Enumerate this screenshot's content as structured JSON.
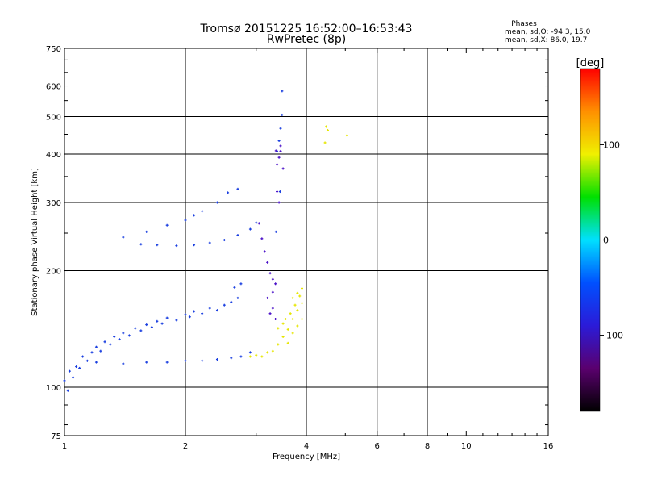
{
  "chart_data": {
    "type": "scatter",
    "title": "Tromsø 20151225 16:52:00–16:53:43",
    "subtitle": "RwPretec (8p)",
    "xlabel": "Frequency [MHz]",
    "ylabel": "Stationary phase Virtual Height [km]",
    "x_scale": "log",
    "y_scale": "log",
    "xlim": [
      1,
      16
    ],
    "ylim": [
      75,
      750
    ],
    "x_ticks": [
      1,
      2,
      4,
      6,
      8,
      10,
      16
    ],
    "y_ticks": [
      75,
      100,
      200,
      300,
      400,
      500,
      600,
      750
    ],
    "x_gridlines": [
      2,
      4,
      6,
      8
    ],
    "y_gridlines": [
      100,
      200,
      300,
      400,
      500,
      600
    ],
    "grid": true,
    "phases": {
      "heading": "Phases",
      "line_o": "mean, sd,O: -94.3, 15.0",
      "line_x": "mean, sd,X:  86.0, 19.7"
    },
    "colorbar": {
      "label": "[deg]",
      "range": [
        -180,
        180
      ],
      "ticks": [
        100,
        0,
        -100
      ],
      "colors": [
        "#000000",
        "#5a006e",
        "#2b1bd8",
        "#0050ff",
        "#00e0ff",
        "#00e000",
        "#f0f000",
        "#ff9000",
        "#ff0000"
      ]
    },
    "series": [
      {
        "phase_deg": -100,
        "color": "#1a3fe0",
        "points": [
          [
            1.0,
            104
          ],
          [
            1.02,
            98
          ],
          [
            1.03,
            110
          ],
          [
            1.05,
            106
          ],
          [
            1.07,
            113
          ],
          [
            1.09,
            112
          ],
          [
            1.11,
            120
          ],
          [
            1.14,
            117
          ],
          [
            1.17,
            123
          ],
          [
            1.2,
            127
          ],
          [
            1.23,
            124
          ],
          [
            1.26,
            131
          ],
          [
            1.3,
            129
          ],
          [
            1.33,
            135
          ],
          [
            1.37,
            133
          ],
          [
            1.4,
            138
          ],
          [
            1.45,
            136
          ],
          [
            1.5,
            142
          ],
          [
            1.55,
            140
          ],
          [
            1.6,
            145
          ],
          [
            1.65,
            143
          ],
          [
            1.7,
            148
          ],
          [
            1.75,
            146
          ],
          [
            1.8,
            151
          ],
          [
            1.9,
            149
          ],
          [
            2.0,
            154
          ],
          [
            2.05,
            152
          ],
          [
            2.1,
            157
          ],
          [
            2.2,
            155
          ],
          [
            2.3,
            160
          ],
          [
            2.4,
            158
          ],
          [
            2.5,
            163
          ],
          [
            2.6,
            166
          ],
          [
            2.7,
            170
          ],
          [
            2.65,
            181
          ],
          [
            2.75,
            185
          ],
          [
            1.2,
            116
          ],
          [
            1.4,
            115
          ],
          [
            1.6,
            116
          ],
          [
            1.8,
            116
          ],
          [
            2.0,
            117
          ],
          [
            2.2,
            117
          ],
          [
            2.4,
            118
          ],
          [
            2.6,
            119
          ],
          [
            2.75,
            120
          ],
          [
            2.9,
            123
          ],
          [
            1.55,
            234
          ],
          [
            1.7,
            233
          ],
          [
            1.9,
            232
          ],
          [
            2.1,
            233
          ],
          [
            2.3,
            236
          ],
          [
            2.5,
            240
          ],
          [
            2.7,
            247
          ],
          [
            2.9,
            256
          ],
          [
            3.0,
            266
          ],
          [
            1.4,
            244
          ],
          [
            1.6,
            252
          ],
          [
            1.8,
            262
          ],
          [
            2.0,
            270
          ],
          [
            2.1,
            278
          ],
          [
            2.2,
            285
          ],
          [
            2.4,
            300
          ],
          [
            2.55,
            318
          ],
          [
            2.7,
            325
          ],
          [
            3.38,
            407
          ],
          [
            3.42,
            433
          ],
          [
            3.45,
            466
          ],
          [
            3.48,
            505
          ],
          [
            3.48,
            582
          ],
          [
            3.36,
            252
          ],
          [
            3.44,
            320
          ]
        ]
      },
      {
        "phase_deg": -130,
        "color": "#4a10c8",
        "points": [
          [
            3.05,
            265
          ],
          [
            3.1,
            242
          ],
          [
            3.15,
            224
          ],
          [
            3.2,
            210
          ],
          [
            3.25,
            197
          ],
          [
            3.3,
            190
          ],
          [
            3.35,
            185
          ],
          [
            3.2,
            170
          ],
          [
            3.3,
            176
          ],
          [
            3.25,
            155
          ],
          [
            3.3,
            160
          ],
          [
            3.35,
            150
          ],
          [
            3.36,
            408
          ],
          [
            3.42,
            392
          ],
          [
            3.45,
            420
          ],
          [
            3.5,
            367
          ],
          [
            3.38,
            376
          ],
          [
            3.45,
            407
          ],
          [
            3.38,
            320
          ],
          [
            3.42,
            300
          ]
        ]
      },
      {
        "phase_deg": 100,
        "color": "#e6e600",
        "points": [
          [
            2.9,
            120
          ],
          [
            3.0,
            121
          ],
          [
            3.1,
            120
          ],
          [
            3.2,
            123
          ],
          [
            3.3,
            124
          ],
          [
            3.4,
            129
          ],
          [
            3.5,
            135
          ],
          [
            3.6,
            141
          ],
          [
            3.7,
            150
          ],
          [
            3.8,
            158
          ],
          [
            3.9,
            165
          ],
          [
            3.55,
            150
          ],
          [
            3.65,
            155
          ],
          [
            3.75,
            163
          ],
          [
            3.85,
            172
          ],
          [
            3.4,
            142
          ],
          [
            3.5,
            146
          ],
          [
            3.7,
            170
          ],
          [
            3.8,
            175
          ],
          [
            3.9,
            180
          ],
          [
            3.6,
            130
          ],
          [
            3.7,
            138
          ],
          [
            3.8,
            144
          ],
          [
            3.9,
            150
          ],
          [
            4.48,
            471
          ],
          [
            4.52,
            461
          ],
          [
            5.05,
            447
          ],
          [
            4.45,
            428
          ]
        ]
      }
    ]
  }
}
